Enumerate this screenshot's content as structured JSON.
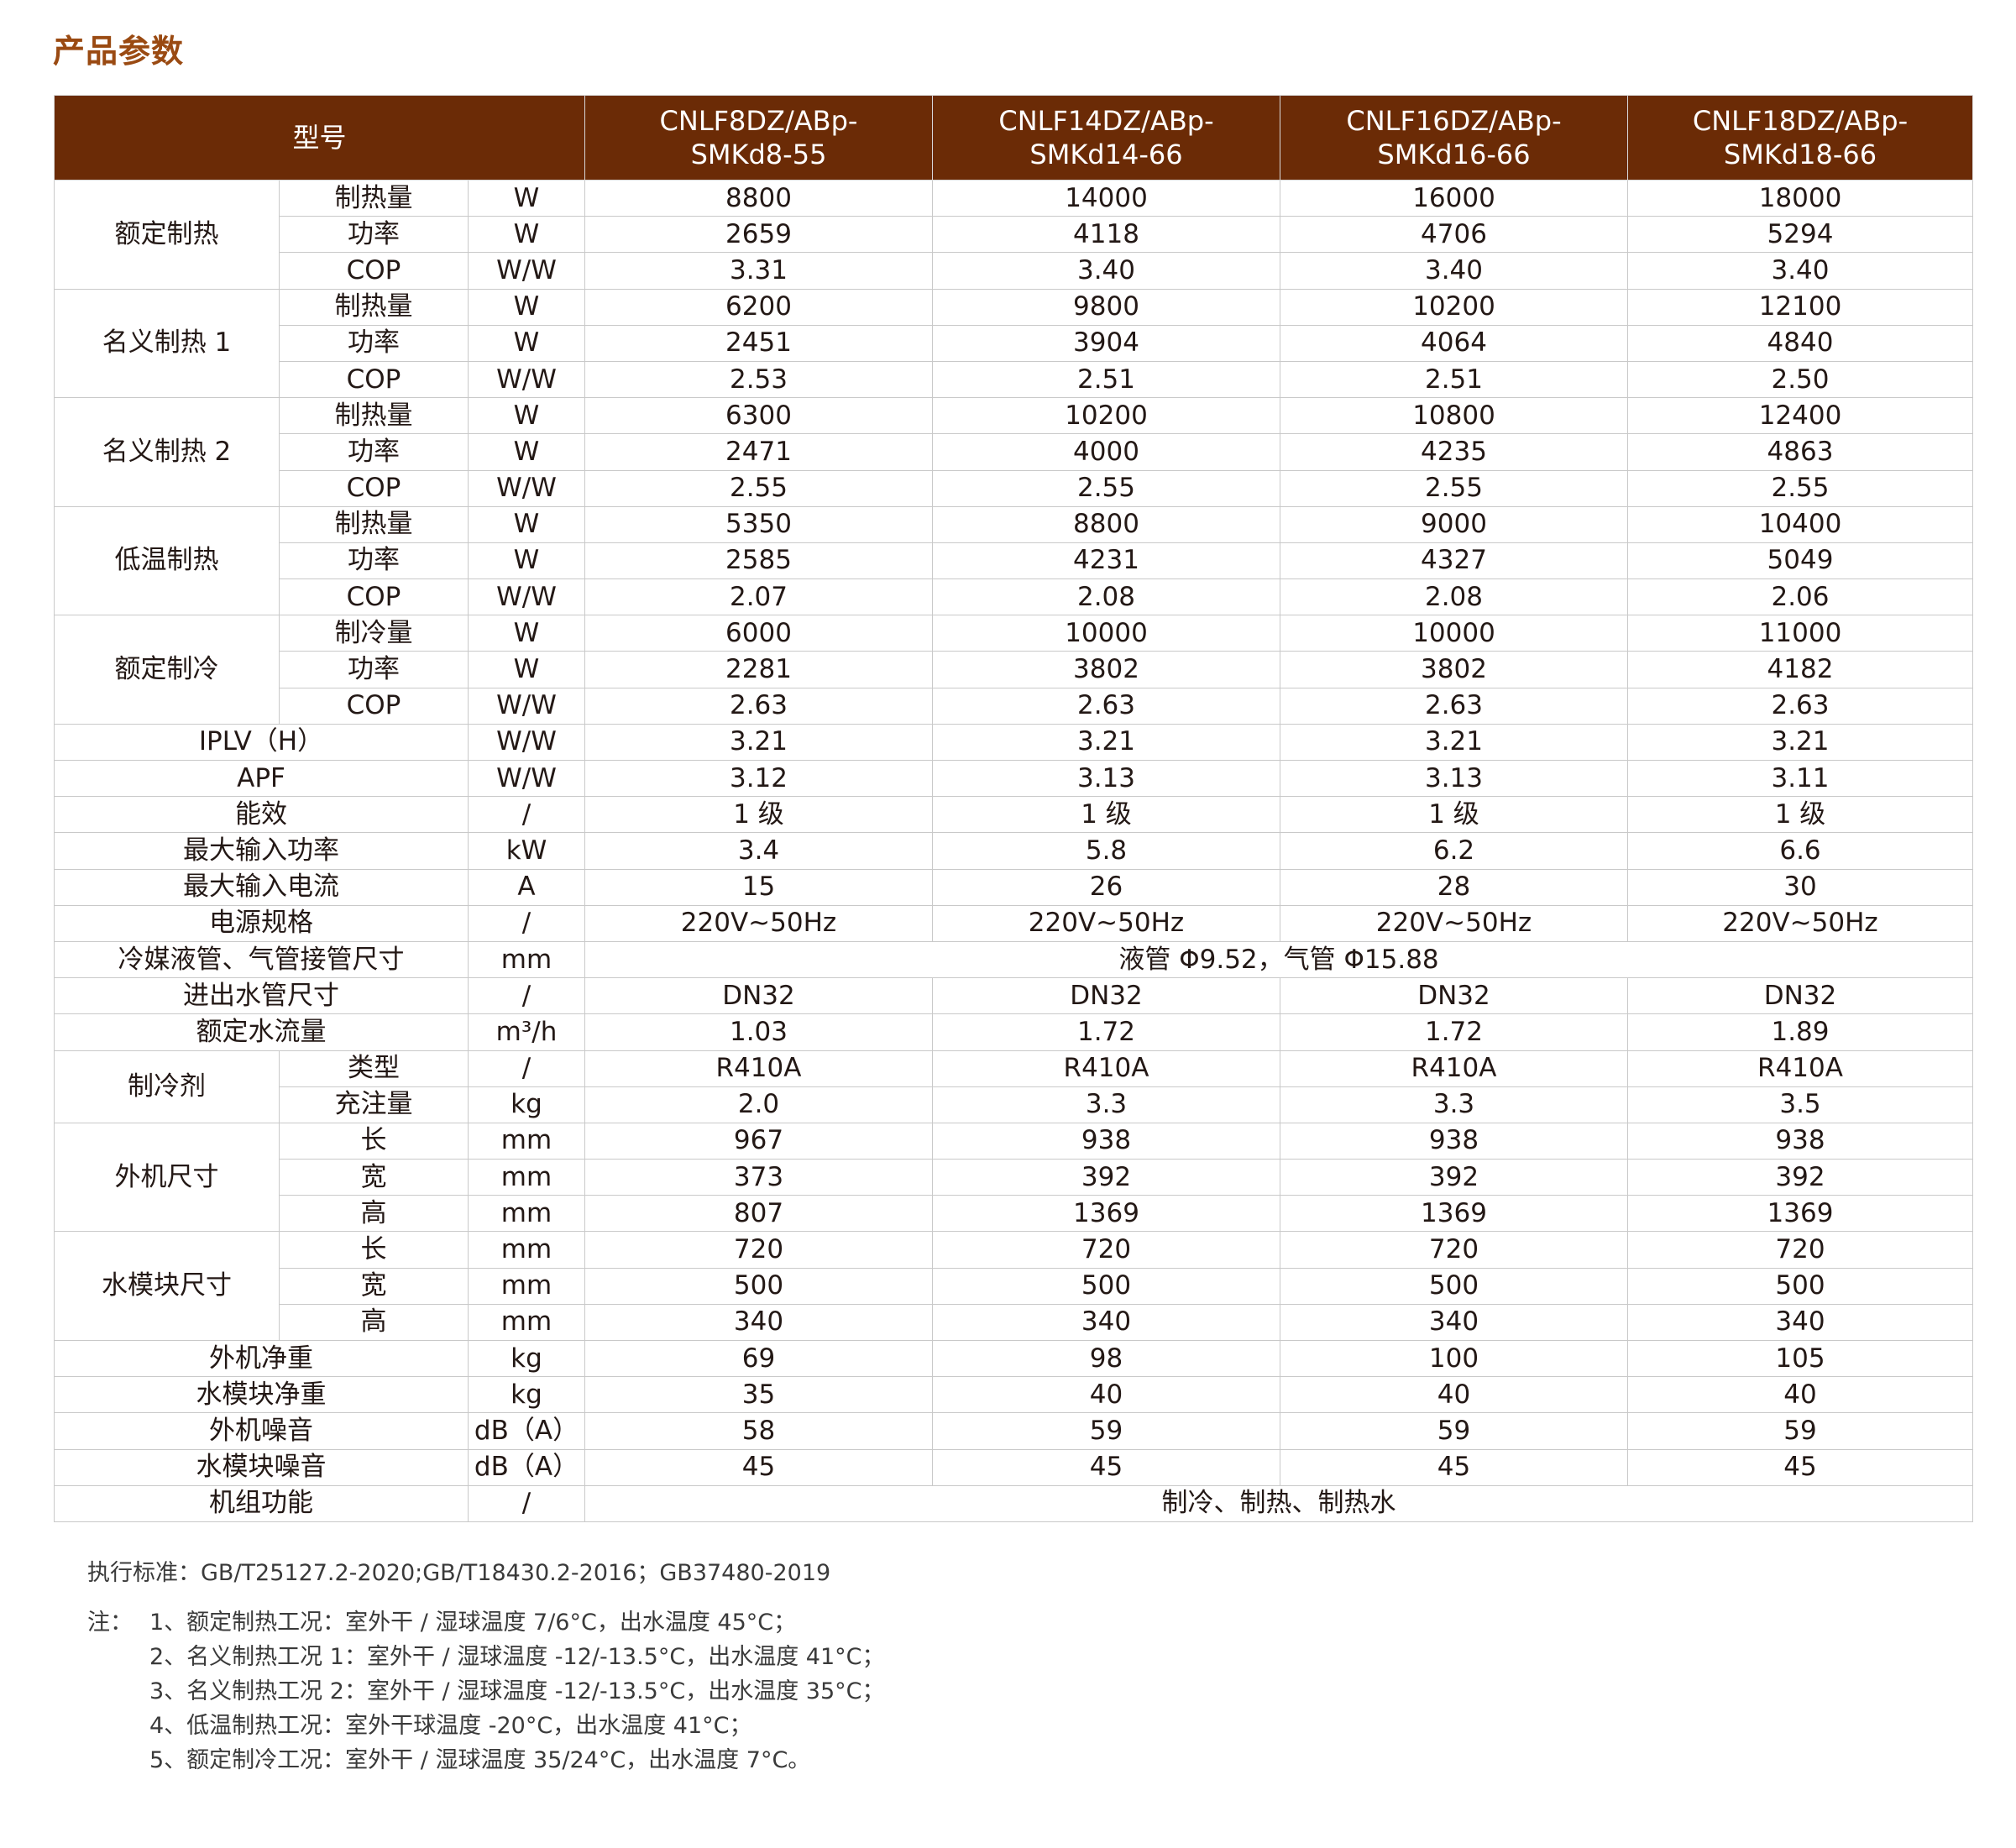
{
  "title": "产品参数",
  "header": {
    "model_label": "型号",
    "models": [
      [
        "CNLF8DZ/ABp-",
        "SMKd8-55"
      ],
      [
        "CNLF14DZ/ABp-",
        "SMKd14-66"
      ],
      [
        "CNLF16DZ/ABp-",
        "SMKd16-66"
      ],
      [
        "CNLF18DZ/ABp-",
        "SMKd18-66"
      ]
    ]
  },
  "groups": [
    {
      "name": "额定制热",
      "rows": [
        {
          "item": "制热量",
          "unit": "W",
          "values": [
            "8800",
            "14000",
            "16000",
            "18000"
          ]
        },
        {
          "item": "功率",
          "unit": "W",
          "values": [
            "2659",
            "4118",
            "4706",
            "5294"
          ]
        },
        {
          "item": "COP",
          "unit": "W/W",
          "values": [
            "3.31",
            "3.40",
            "3.40",
            "3.40"
          ]
        }
      ]
    },
    {
      "name": "名义制热 1",
      "rows": [
        {
          "item": "制热量",
          "unit": "W",
          "values": [
            "6200",
            "9800",
            "10200",
            "12100"
          ]
        },
        {
          "item": "功率",
          "unit": "W",
          "values": [
            "2451",
            "3904",
            "4064",
            "4840"
          ]
        },
        {
          "item": "COP",
          "unit": "W/W",
          "values": [
            "2.53",
            "2.51",
            "2.51",
            "2.50"
          ]
        }
      ]
    },
    {
      "name": "名义制热 2",
      "rows": [
        {
          "item": "制热量",
          "unit": "W",
          "values": [
            "6300",
            "10200",
            "10800",
            "12400"
          ]
        },
        {
          "item": "功率",
          "unit": "W",
          "values": [
            "2471",
            "4000",
            "4235",
            "4863"
          ]
        },
        {
          "item": "COP",
          "unit": "W/W",
          "values": [
            "2.55",
            "2.55",
            "2.55",
            "2.55"
          ]
        }
      ]
    },
    {
      "name": "低温制热",
      "rows": [
        {
          "item": "制热量",
          "unit": "W",
          "values": [
            "5350",
            "8800",
            "9000",
            "10400"
          ]
        },
        {
          "item": "功率",
          "unit": "W",
          "values": [
            "2585",
            "4231",
            "4327",
            "5049"
          ]
        },
        {
          "item": "COP",
          "unit": "W/W",
          "values": [
            "2.07",
            "2.08",
            "2.08",
            "2.06"
          ]
        }
      ]
    },
    {
      "name": "额定制冷",
      "rows": [
        {
          "item": "制冷量",
          "unit": "W",
          "values": [
            "6000",
            "10000",
            "10000",
            "11000"
          ]
        },
        {
          "item": "功率",
          "unit": "W",
          "values": [
            "2281",
            "3802",
            "3802",
            "4182"
          ]
        },
        {
          "item": "COP",
          "unit": "W/W",
          "values": [
            "2.63",
            "2.63",
            "2.63",
            "2.63"
          ]
        }
      ]
    }
  ],
  "singles_a": [
    {
      "label": "IPLV（H）",
      "unit": "W/W",
      "values": [
        "3.21",
        "3.21",
        "3.21",
        "3.21"
      ]
    },
    {
      "label": "APF",
      "unit": "W/W",
      "values": [
        "3.12",
        "3.13",
        "3.13",
        "3.11"
      ]
    },
    {
      "label": "能效",
      "unit": "/",
      "values": [
        "1 级",
        "1 级",
        "1 级",
        "1 级"
      ]
    },
    {
      "label": "最大输入功率",
      "unit": "kW",
      "values": [
        "3.4",
        "5.8",
        "6.2",
        "6.6"
      ]
    },
    {
      "label": "最大输入电流",
      "unit": "A",
      "values": [
        "15",
        "26",
        "28",
        "30"
      ]
    },
    {
      "label": "电源规格",
      "unit": "/",
      "values": [
        "220V~50Hz",
        "220V~50Hz",
        "220V~50Hz",
        "220V~50Hz"
      ]
    }
  ],
  "pipe_row": {
    "label": "冷媒液管、气管接管尺寸",
    "unit": "mm",
    "value": "液管 Φ9.52，气管 Φ15.88"
  },
  "singles_b": [
    {
      "label": "进出水管尺寸",
      "unit": "/",
      "values": [
        "DN32",
        "DN32",
        "DN32",
        "DN32"
      ]
    },
    {
      "label": "额定水流量",
      "unit": "m³/h",
      "values": [
        "1.03",
        "1.72",
        "1.72",
        "1.89"
      ]
    }
  ],
  "groups_b": [
    {
      "name": "制冷剂",
      "rows": [
        {
          "item": "类型",
          "unit": "/",
          "values": [
            "R410A",
            "R410A",
            "R410A",
            "R410A"
          ]
        },
        {
          "item": "充注量",
          "unit": "kg",
          "values": [
            "2.0",
            "3.3",
            "3.3",
            "3.5"
          ]
        }
      ]
    },
    {
      "name": "外机尺寸",
      "rows": [
        {
          "item": "长",
          "unit": "mm",
          "values": [
            "967",
            "938",
            "938",
            "938"
          ]
        },
        {
          "item": "宽",
          "unit": "mm",
          "values": [
            "373",
            "392",
            "392",
            "392"
          ]
        },
        {
          "item": "高",
          "unit": "mm",
          "values": [
            "807",
            "1369",
            "1369",
            "1369"
          ]
        }
      ]
    },
    {
      "name": "水模块尺寸",
      "rows": [
        {
          "item": "长",
          "unit": "mm",
          "values": [
            "720",
            "720",
            "720",
            "720"
          ]
        },
        {
          "item": "宽",
          "unit": "mm",
          "values": [
            "500",
            "500",
            "500",
            "500"
          ]
        },
        {
          "item": "高",
          "unit": "mm",
          "values": [
            "340",
            "340",
            "340",
            "340"
          ]
        }
      ]
    }
  ],
  "singles_c": [
    {
      "label": "外机净重",
      "unit": "kg",
      "values": [
        "69",
        "98",
        "100",
        "105"
      ]
    },
    {
      "label": "水模块净重",
      "unit": "kg",
      "values": [
        "35",
        "40",
        "40",
        "40"
      ]
    },
    {
      "label": "外机噪音",
      "unit": "dB（A）",
      "values": [
        "58",
        "59",
        "59",
        "59"
      ]
    },
    {
      "label": "水模块噪音",
      "unit": "dB（A）",
      "values": [
        "45",
        "45",
        "45",
        "45"
      ]
    }
  ],
  "function_row": {
    "label": "机组功能",
    "unit": "/",
    "value": "制冷、制热、制热水"
  },
  "footer": {
    "standard": "执行标准：GB/T25127.2-2020;GB/T18430.2-2016；GB37480-2019",
    "note_label": "注：",
    "notes": [
      "1、额定制热工况：室外干 / 湿球温度 7/6°C，出水温度 45°C；",
      "2、名义制热工况 1：室外干 / 湿球温度 -12/-13.5°C，出水温度 41°C；",
      "3、名义制热工况 2：室外干 / 湿球温度 -12/-13.5°C，出水温度 35°C；",
      "4、低温制热工况：室外干球温度 -20°C，出水温度 41°C；",
      "5、额定制冷工况：室外干 / 湿球温度 35/24°C，出水温度 7°C。"
    ]
  }
}
